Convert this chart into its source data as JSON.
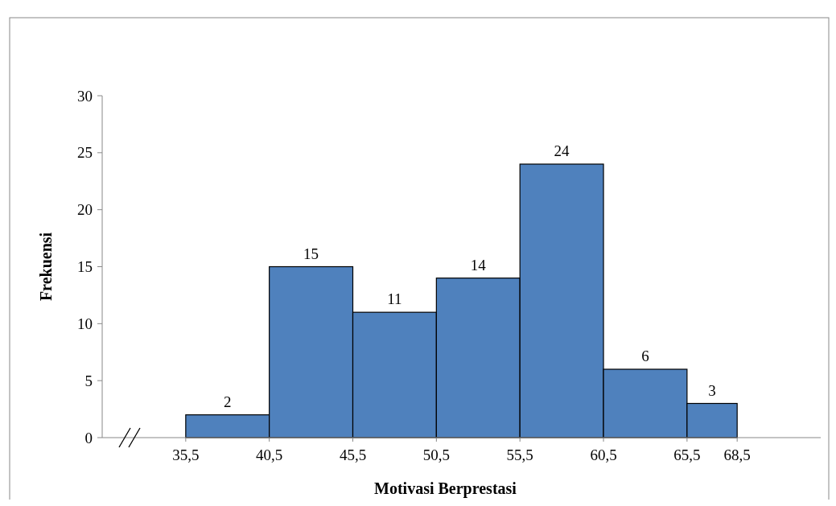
{
  "chart_data": {
    "type": "histogram",
    "xlabel": "Motivasi Berprestasi",
    "ylabel": "Frekuensi",
    "bins": [
      35.5,
      40.5,
      45.5,
      50.5,
      55.5,
      60.5,
      65.5,
      68.5
    ],
    "values": [
      2,
      15,
      11,
      14,
      24,
      6,
      3
    ],
    "color": "#4f81bd",
    "xlim": [
      30.5,
      73.5
    ],
    "xticks": [
      {
        "value": 35.5,
        "label": "35,5"
      },
      {
        "value": 40.5,
        "label": "40,5"
      },
      {
        "value": 45.5,
        "label": "45,5"
      },
      {
        "value": 50.5,
        "label": "50,5"
      },
      {
        "value": 55.5,
        "label": "55,5"
      },
      {
        "value": 60.5,
        "label": "60,5"
      },
      {
        "value": 65.5,
        "label": "65,5"
      },
      {
        "value": 68.5,
        "label": "68,5"
      }
    ],
    "ylim": [
      0,
      30
    ],
    "yticks": [
      0,
      5,
      10,
      15,
      20,
      25,
      30
    ],
    "data_labels": true,
    "grid": false
  }
}
